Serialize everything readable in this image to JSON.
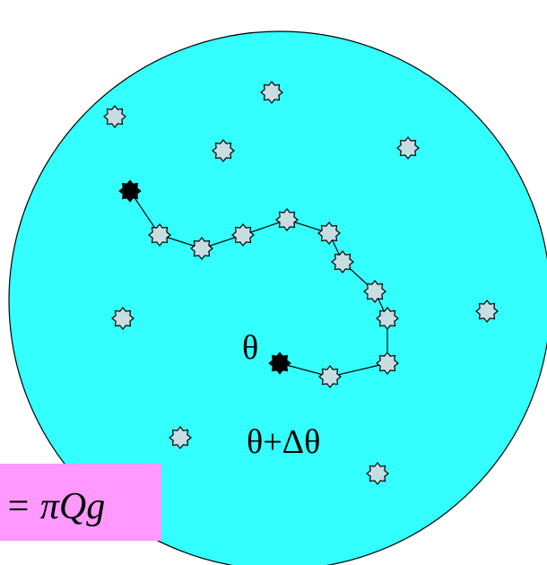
{
  "labels": {
    "start": "θ",
    "end": "θ+Δθ",
    "formula": "= πQg"
  }
}
